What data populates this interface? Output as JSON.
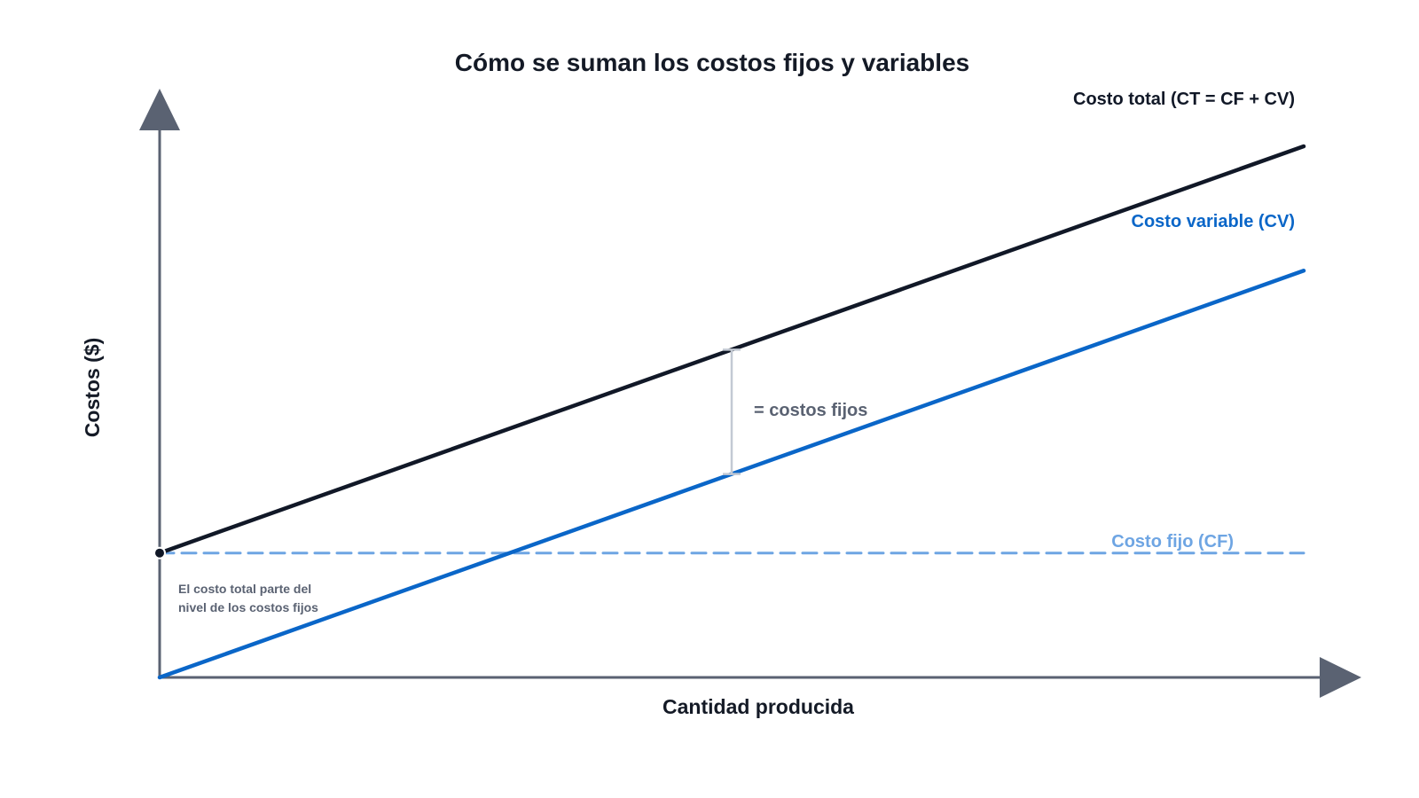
{
  "chart_data": {
    "type": "line",
    "title": "Cómo se suman los costos fijos y variables",
    "xlabel": "Cantidad producida",
    "ylabel": "Costos ($)",
    "xlim": [
      0,
      10
    ],
    "ylim": [
      0,
      10
    ],
    "grid": false,
    "series": [
      {
        "name": "Costo total (CT = CF + CV)",
        "color": "#111827",
        "dash": "solid",
        "x": [
          0,
          10
        ],
        "y": [
          2.3,
          9.82
        ]
      },
      {
        "name": "Costo variable (CV)",
        "color": "#0a66c8",
        "dash": "solid",
        "x": [
          0,
          10
        ],
        "y": [
          0,
          7.52
        ]
      },
      {
        "name": "Costo fijo (CF)",
        "color": "#6ea5e3",
        "dash": "dashed",
        "x": [
          0,
          10
        ],
        "y": [
          2.3,
          2.3
        ]
      }
    ],
    "annotations": [
      {
        "text": "= costos fijos",
        "x": 5,
        "y_from": 3.76,
        "y_to": 6.06
      },
      {
        "text_lines": [
          "El costo total parte del",
          "nivel de los costos fijos"
        ],
        "x": 0,
        "y": 2.3
      }
    ],
    "axis_color": "#5a6272"
  }
}
